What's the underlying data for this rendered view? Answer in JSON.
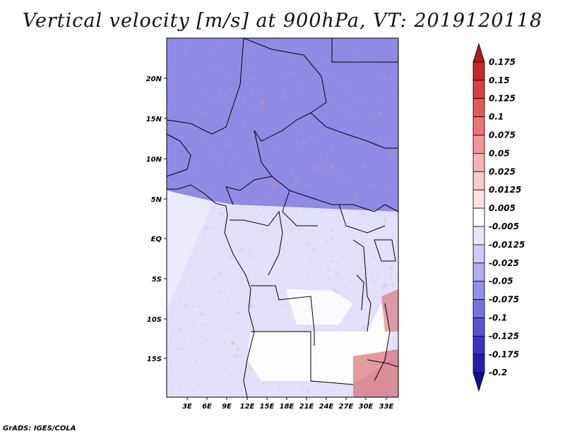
{
  "title": "Vertical velocity [m/s] at 900hPa, VT: 2019120118",
  "footer": "GrADS: IGES/COLA",
  "y_axis_labels": [
    "20N",
    "15N",
    "10N",
    "5N",
    "EQ",
    "5S",
    "10S",
    "15S"
  ],
  "x_axis_labels": [
    "3E",
    "6E",
    "9E",
    "12E",
    "15E",
    "18E",
    "21E",
    "24E",
    "27E",
    "30E",
    "33E"
  ],
  "colorbar": {
    "labels": [
      "0.175",
      "0.15",
      "0.125",
      "0.1",
      "0.075",
      "0.05",
      "0.025",
      "0.0125",
      "0.005",
      "-0.005",
      "-0.0125",
      "-0.025",
      "-0.05",
      "-0.075",
      "-0.1",
      "-0.125",
      "-0.175",
      "-0.2"
    ],
    "colors": [
      "#b01a1a",
      "#c82a2a",
      "#d84040",
      "#e45a5a",
      "#ec7676",
      "#f29494",
      "#f6b2b2",
      "#f9cccc",
      "#fce4e4",
      "#ffffff",
      "#e6e6fc",
      "#cccaf6",
      "#b0acf0",
      "#9490ea",
      "#7670e0",
      "#5852d4",
      "#3a34c6",
      "#2420ae",
      "#120e96"
    ]
  }
}
